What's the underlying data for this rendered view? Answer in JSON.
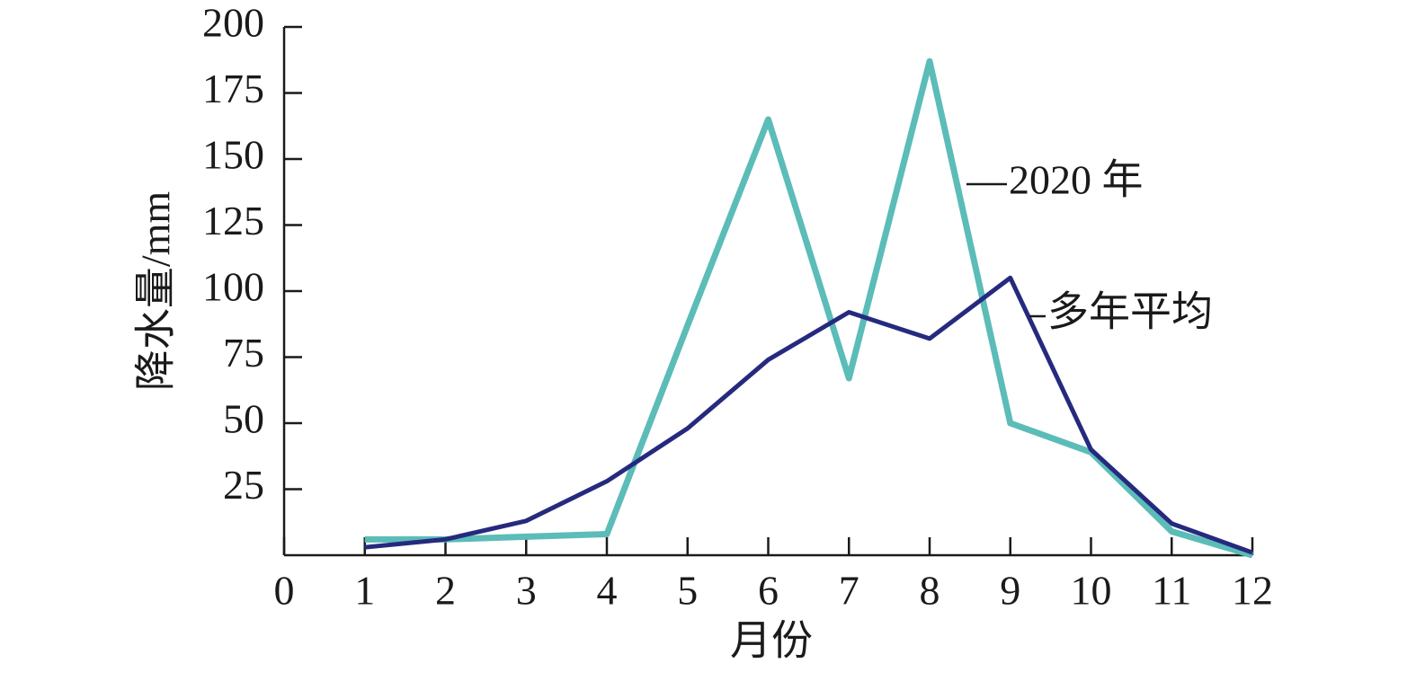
{
  "chart_data": {
    "type": "line",
    "x_label": "月份",
    "y_label": "降水量/mm",
    "x": [
      1,
      2,
      3,
      4,
      5,
      6,
      7,
      8,
      9,
      10,
      11,
      12
    ],
    "series": [
      {
        "name": "2020 年",
        "color": "#5bbcb8",
        "values": [
          6,
          6,
          7,
          8,
          87,
          165,
          67,
          187,
          50,
          39,
          9,
          0
        ]
      },
      {
        "name": "多年平均",
        "color": "#262a7e",
        "values": [
          3,
          6,
          13,
          28,
          48,
          74,
          92,
          82,
          105,
          40,
          12,
          1
        ]
      }
    ],
    "xlim": [
      0,
      12
    ],
    "xticks": [
      0,
      1,
      2,
      3,
      4,
      5,
      6,
      7,
      8,
      9,
      10,
      11,
      12
    ],
    "ylim": [
      0,
      200
    ],
    "yticks": [
      25,
      50,
      75,
      100,
      125,
      150,
      175,
      200
    ]
  }
}
